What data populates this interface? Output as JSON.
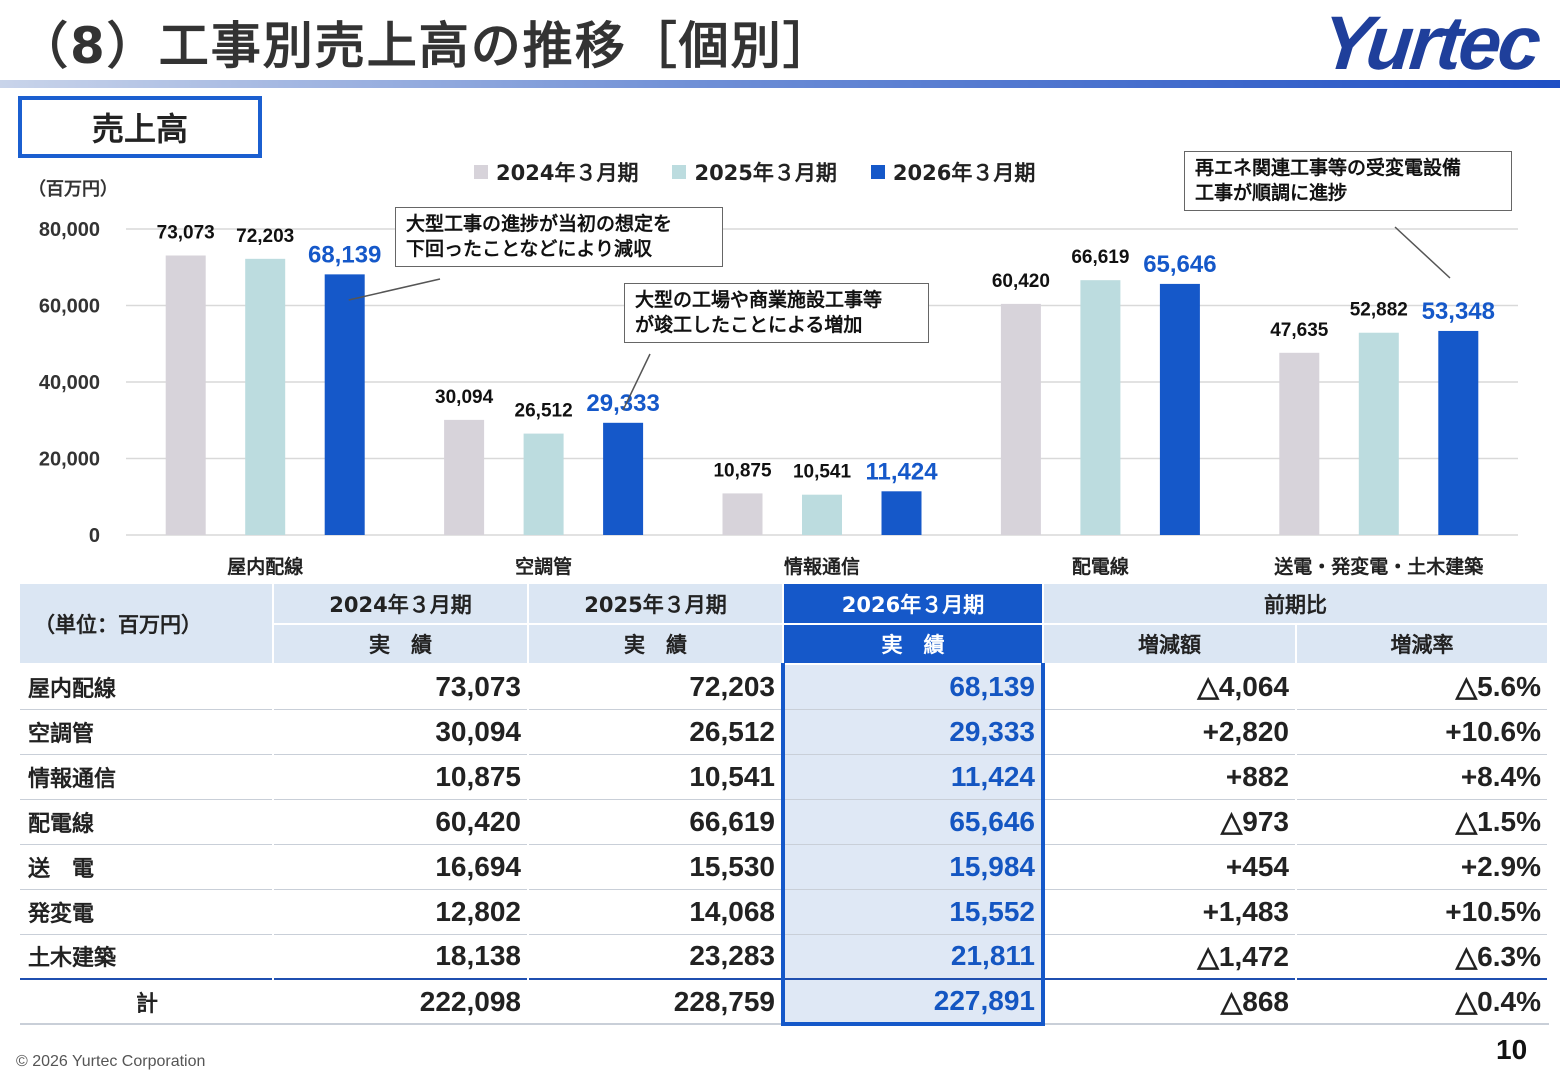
{
  "header": {
    "title": "（8）工事別売上高の推移［個別］",
    "logo": "Yurtec"
  },
  "section": {
    "label": "売上高"
  },
  "chart_data": {
    "type": "bar",
    "unit_label": "（百万円）",
    "categories": [
      "屋内配線",
      "空調管",
      "情報通信",
      "配電線",
      "送電・発変電・土木建築"
    ],
    "series": [
      {
        "name": "2024年３月期",
        "color": "#d7d3da",
        "label_color": "#111111",
        "values": [
          73073,
          30094,
          10875,
          60420,
          47635
        ],
        "labels": [
          "73,073",
          "30,094",
          "10,875",
          "60,420",
          "47,635"
        ]
      },
      {
        "name": "2025年３月期",
        "color": "#bcdcdf",
        "label_color": "#111111",
        "values": [
          72203,
          26512,
          10541,
          66619,
          52882
        ],
        "labels": [
          "72,203",
          "26,512",
          "10,541",
          "66,619",
          "52,882"
        ]
      },
      {
        "name": "2026年３月期",
        "color": "#1558c9",
        "label_color": "#1558c9",
        "values": [
          68139,
          29333,
          11424,
          65646,
          53348
        ],
        "labels": [
          "68,139",
          "29,333",
          "11,424",
          "65,646",
          "53,348"
        ]
      }
    ],
    "ylim": [
      0,
      80000
    ],
    "yticks": [
      0,
      20000,
      40000,
      60000,
      80000
    ],
    "ytick_labels": [
      "0",
      "20,000",
      "40,000",
      "60,000",
      "80,000"
    ],
    "grid": true,
    "legend": "top",
    "annotations": [
      "大型工事の進捗が当初の想定を\n下回ったことなどにより減収",
      "大型の工場や商業施設工事等\nが竣工したことによる増加",
      "再エネ関連工事等の受変電設備\n工事が順調に進捗"
    ]
  },
  "table": {
    "unit": "（単位：百万円）",
    "period_headers": [
      "2024年３月期",
      "2025年３月期",
      "2026年３月期",
      "前期比"
    ],
    "sub_headers": [
      "実　績",
      "実　績",
      "実　績",
      "増減額",
      "増減率"
    ],
    "rows": [
      {
        "label": "屋内配線",
        "v2024": "73,073",
        "v2025": "72,203",
        "v2026": "68,139",
        "diff": "△4,064",
        "rate": "△5.6%"
      },
      {
        "label": "空調管",
        "v2024": "30,094",
        "v2025": "26,512",
        "v2026": "29,333",
        "diff": "+2,820",
        "rate": "+10.6%"
      },
      {
        "label": "情報通信",
        "v2024": "10,875",
        "v2025": "10,541",
        "v2026": "11,424",
        "diff": "+882",
        "rate": "+8.4%"
      },
      {
        "label": "配電線",
        "v2024": "60,420",
        "v2025": "66,619",
        "v2026": "65,646",
        "diff": "△973",
        "rate": "△1.5%"
      },
      {
        "label": "送　電",
        "v2024": "16,694",
        "v2025": "15,530",
        "v2026": "15,984",
        "diff": "+454",
        "rate": "+2.9%"
      },
      {
        "label": "発変電",
        "v2024": "12,802",
        "v2025": "14,068",
        "v2026": "15,552",
        "diff": "+1,483",
        "rate": "+10.5%"
      },
      {
        "label": "土木建築",
        "v2024": "18,138",
        "v2025": "23,283",
        "v2026": "21,811",
        "diff": "△1,472",
        "rate": "△6.3%"
      }
    ],
    "total": {
      "label": "計",
      "v2024": "222,098",
      "v2025": "228,759",
      "v2026": "227,891",
      "diff": "△868",
      "rate": "△0.4%"
    }
  },
  "footer": {
    "copyright": "© 2026 Yurtec Corporation",
    "page": "10"
  }
}
